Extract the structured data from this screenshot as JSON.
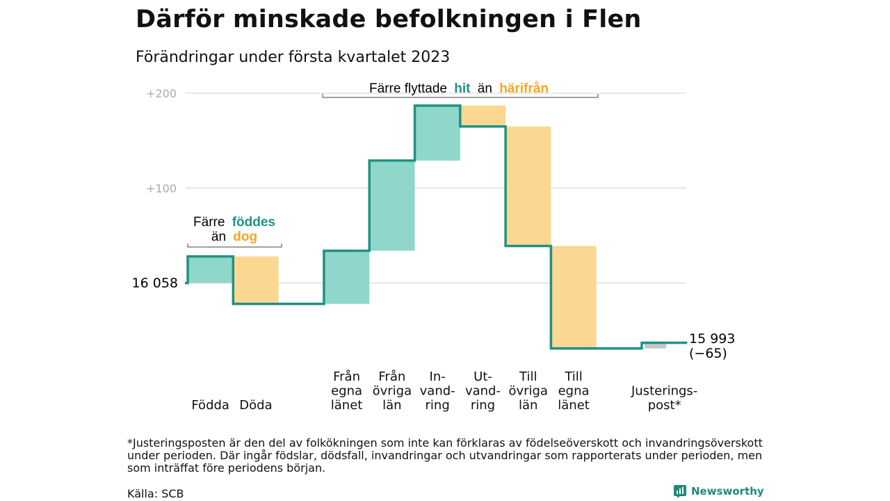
{
  "title": "Därför minskade befolkningen i Flen",
  "subtitle": "Förändringar under första kvartalet 2023",
  "footnote": "*Justeringsposten är den del av folkökningen som inte kan förklaras av födelseöverskott och invandringsöverskott under perioden. Där ingår födslar, dödsfall, invandringar och utvandringar som rapporterats under perioden, men som inträffat före periodens början.",
  "source": "Källa: SCB",
  "brand": "Newsworthy",
  "colors": {
    "increase": "#8fd6cb",
    "decrease": "#fbd792",
    "adjustment": "#c8c8c8",
    "line": "#1f9283",
    "teal_text": "#1f9283",
    "orange_text": "#f5a623",
    "grid": "#d9d9d9"
  },
  "annotations": {
    "births_deaths": {
      "prefix": "Färre",
      "hl1": "föddes",
      "mid": "än",
      "hl2": "dog"
    },
    "migration": {
      "prefix": "Färre flyttade",
      "hl1": "hit",
      "mid": "än",
      "hl2": "härifrån"
    }
  },
  "chart_data": {
    "type": "waterfall",
    "start_label": "16 058",
    "end_label": "15 993",
    "end_change_label": "(−65)",
    "start_value": 16058,
    "end_value": 15993,
    "y_ticks": [
      {
        "value": 200,
        "label": "+200"
      },
      {
        "value": 100,
        "label": "+100"
      }
    ],
    "ylim": [
      -75,
      200
    ],
    "categories": [
      {
        "label": [
          "Födda"
        ],
        "change": 28,
        "kind": "increase"
      },
      {
        "label": [
          "Döda"
        ],
        "change": -50,
        "kind": "decrease"
      },
      {
        "label": [],
        "change": 0,
        "kind": "gap"
      },
      {
        "label": [
          "Från",
          "egna",
          "länet"
        ],
        "change": 56,
        "kind": "increase"
      },
      {
        "label": [
          "Från",
          "övriga",
          "län"
        ],
        "change": 95,
        "kind": "increase"
      },
      {
        "label": [
          "In-",
          "vand-",
          "ring"
        ],
        "change": 58,
        "kind": "increase"
      },
      {
        "label": [
          "Ut-",
          "vand-",
          "ring"
        ],
        "change": -22,
        "kind": "decrease"
      },
      {
        "label": [
          "Till",
          "övriga",
          "län"
        ],
        "change": -126,
        "kind": "decrease"
      },
      {
        "label": [
          "Till",
          "egna",
          "länet"
        ],
        "change": -108,
        "kind": "decrease"
      },
      {
        "label": [],
        "change": 0,
        "kind": "gap"
      },
      {
        "label": [
          "Justerings-",
          "post*"
        ],
        "change": 6,
        "kind": "adjustment"
      }
    ]
  }
}
